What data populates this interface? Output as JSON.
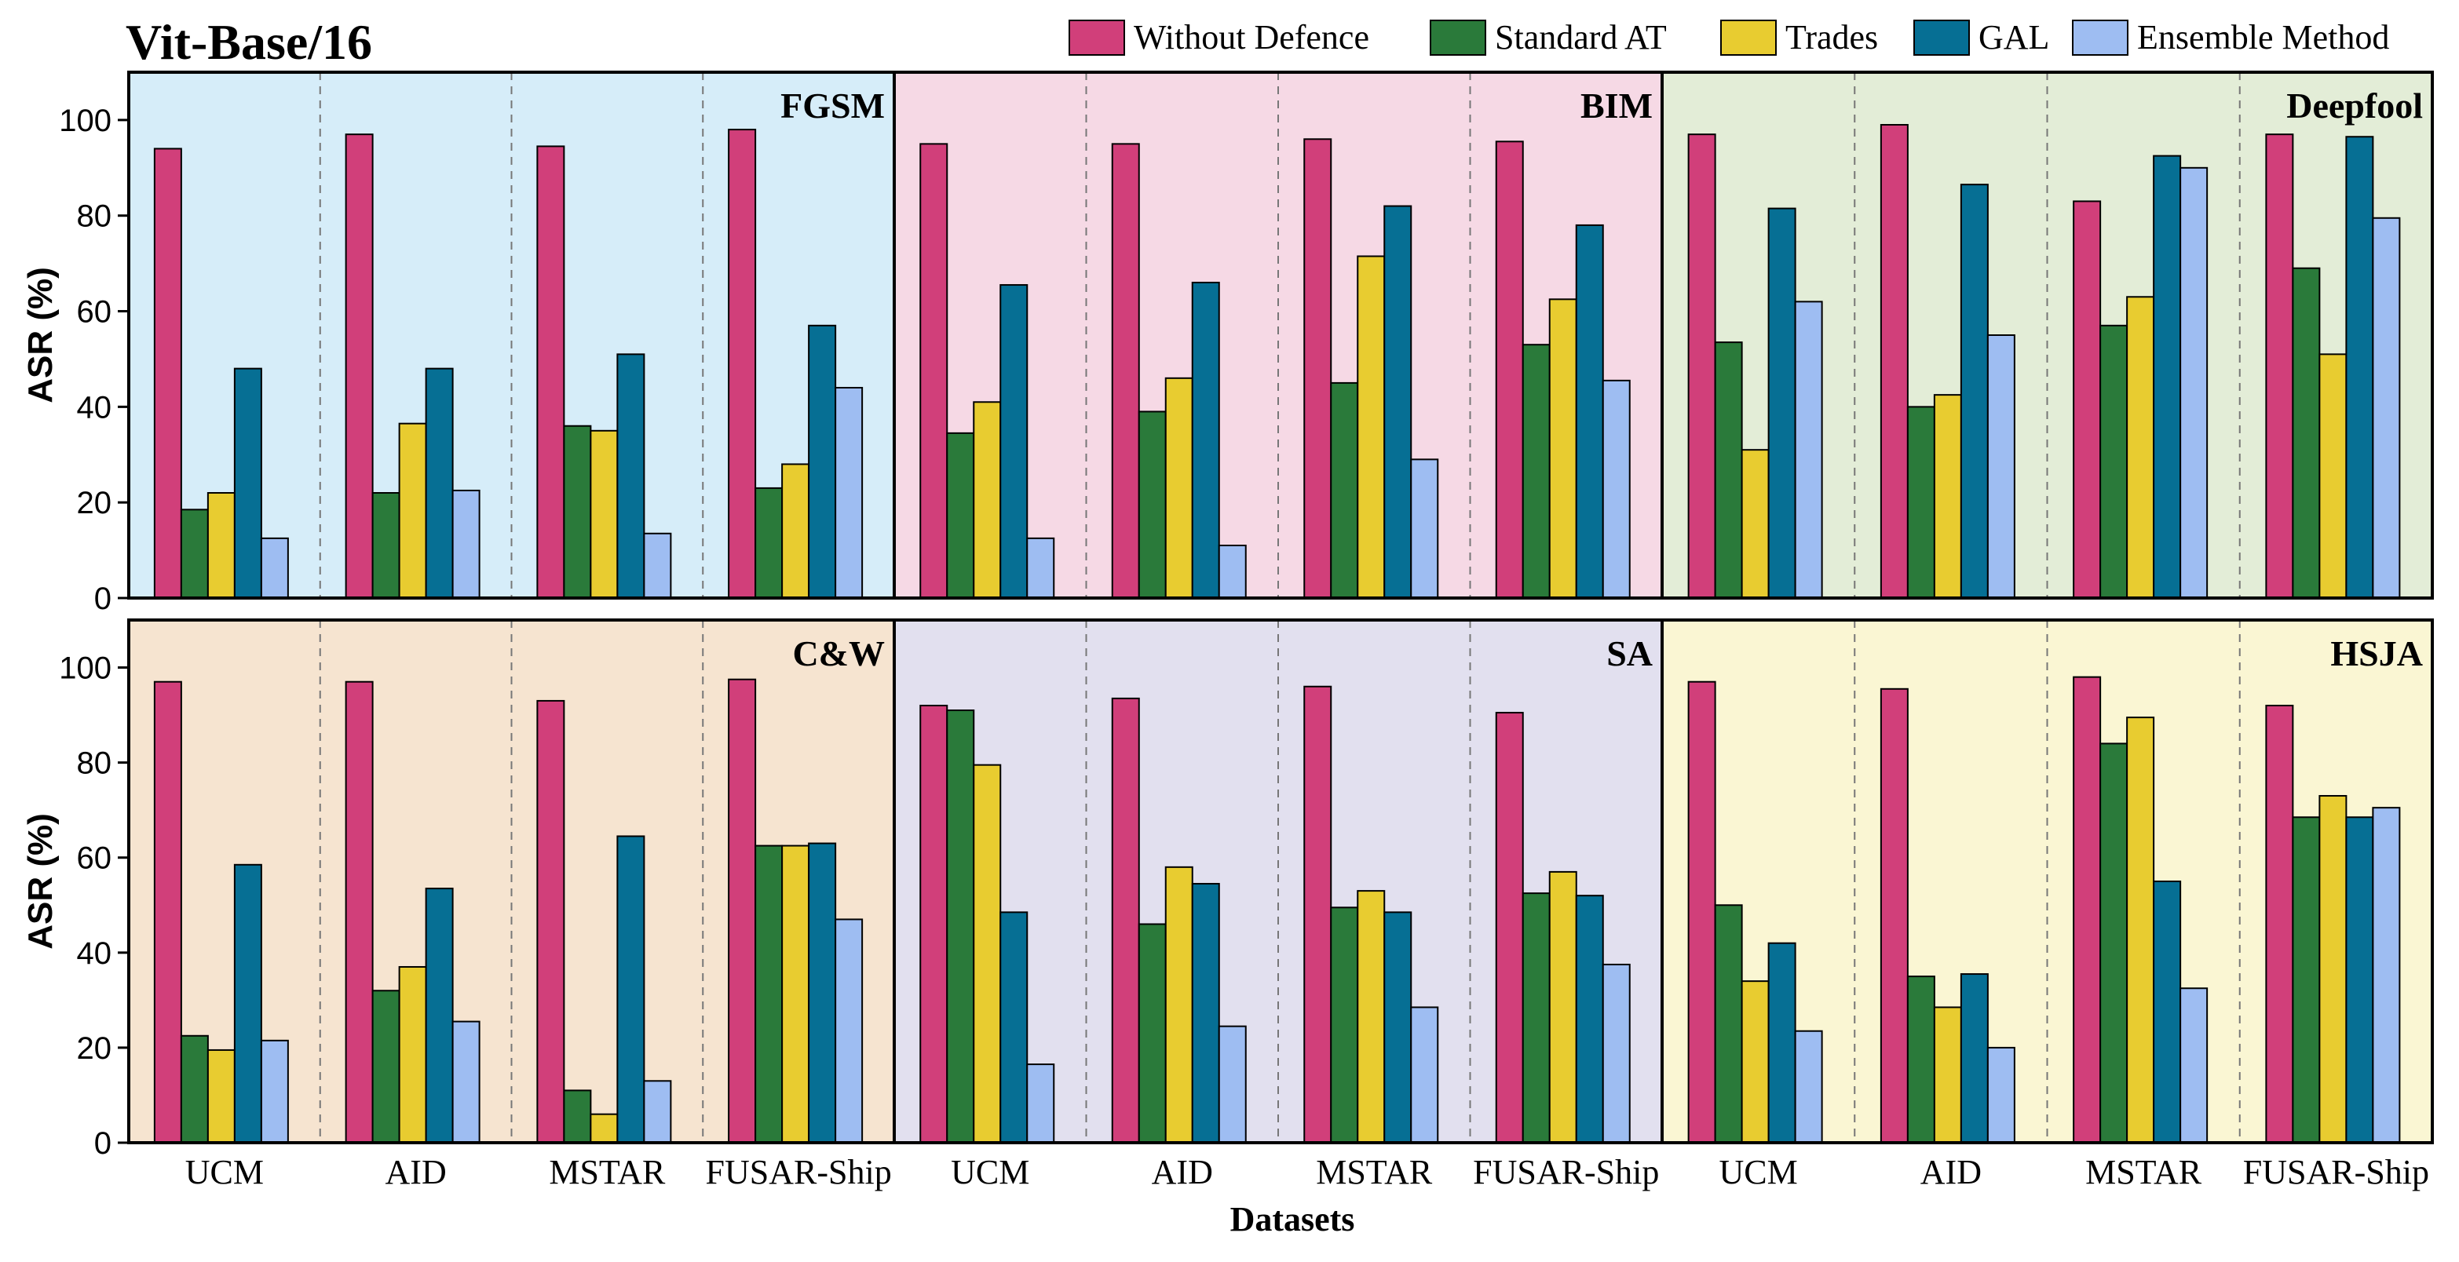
{
  "chart_data": {
    "type": "bar",
    "title": "Vit-Base/16",
    "xlabel": "Datasets",
    "ylabel": "ASR (%)",
    "ylim": [
      0,
      110
    ],
    "yticks": [
      "0",
      "20",
      "40",
      "60",
      "80",
      "100"
    ],
    "grid": false,
    "legend_position": "top-right",
    "categories": [
      "UCM",
      "AID",
      "MSTAR",
      "FUSAR-Ship"
    ],
    "series_names": [
      "Without Defence",
      "Standard AT",
      "Trades",
      "GAL",
      "Ensemble Method"
    ],
    "series_colors": [
      "#d13f7a",
      "#2a7a3a",
      "#e8cc30",
      "#066f94",
      "#9ebdf2"
    ],
    "panels": [
      {
        "attack": "FGSM",
        "background": "#d6edf9",
        "series": [
          {
            "name": "Without Defence",
            "values": [
              94,
              97,
              94.5,
              98
            ]
          },
          {
            "name": "Standard AT",
            "values": [
              18.5,
              22,
              36,
              23
            ]
          },
          {
            "name": "Trades",
            "values": [
              22,
              36.5,
              35,
              28
            ]
          },
          {
            "name": "GAL",
            "values": [
              48,
              48,
              51,
              57
            ]
          },
          {
            "name": "Ensemble Method",
            "values": [
              12.5,
              22.5,
              13.5,
              44
            ]
          }
        ]
      },
      {
        "attack": "BIM",
        "background": "#f6d9e5",
        "series": [
          {
            "name": "Without Defence",
            "values": [
              95,
              95,
              96,
              95.5
            ]
          },
          {
            "name": "Standard AT",
            "values": [
              34.5,
              39,
              45,
              53
            ]
          },
          {
            "name": "Trades",
            "values": [
              41,
              46,
              71.5,
              62.5
            ]
          },
          {
            "name": "GAL",
            "values": [
              65.5,
              66,
              82,
              78
            ]
          },
          {
            "name": "Ensemble Method",
            "values": [
              12.5,
              11,
              29,
              45.5
            ]
          }
        ]
      },
      {
        "attack": "Deepfool",
        "background": "#e3edd7",
        "series": [
          {
            "name": "Without Defence",
            "values": [
              97,
              99,
              83,
              97
            ]
          },
          {
            "name": "Standard AT",
            "values": [
              53.5,
              40,
              57,
              69
            ]
          },
          {
            "name": "Trades",
            "values": [
              31,
              42.5,
              63,
              51
            ]
          },
          {
            "name": "GAL",
            "values": [
              81.5,
              86.5,
              92.5,
              96.5
            ]
          },
          {
            "name": "Ensemble Method",
            "values": [
              62,
              55,
              90,
              79.5
            ]
          }
        ]
      },
      {
        "attack": "C&W",
        "background": "#f6e4d0",
        "series": [
          {
            "name": "Without Defence",
            "values": [
              97,
              97,
              93,
              97.5
            ]
          },
          {
            "name": "Standard AT",
            "values": [
              22.5,
              32,
              11,
              62.5
            ]
          },
          {
            "name": "Trades",
            "values": [
              19.5,
              37,
              6,
              62.5
            ]
          },
          {
            "name": "GAL",
            "values": [
              58.5,
              53.5,
              64.5,
              63
            ]
          },
          {
            "name": "Ensemble Method",
            "values": [
              21.5,
              25.5,
              13,
              47
            ]
          }
        ]
      },
      {
        "attack": "SA",
        "background": "#e2e0ef",
        "series": [
          {
            "name": "Without Defence",
            "values": [
              92,
              93.5,
              96,
              90.5
            ]
          },
          {
            "name": "Standard AT",
            "values": [
              91,
              46,
              49.5,
              52.5
            ]
          },
          {
            "name": "Trades",
            "values": [
              79.5,
              58,
              53,
              57
            ]
          },
          {
            "name": "GAL",
            "values": [
              48.5,
              54.5,
              48.5,
              52
            ]
          },
          {
            "name": "Ensemble Method",
            "values": [
              16.5,
              24.5,
              28.5,
              37.5
            ]
          }
        ]
      },
      {
        "attack": "HSJA",
        "background": "#faf6d3",
        "series": [
          {
            "name": "Without Defence",
            "values": [
              97,
              95.5,
              98,
              92
            ]
          },
          {
            "name": "Standard AT",
            "values": [
              50,
              35,
              84,
              68.5
            ]
          },
          {
            "name": "Trades",
            "values": [
              34,
              28.5,
              89.5,
              73
            ]
          },
          {
            "name": "GAL",
            "values": [
              42,
              35.5,
              55,
              68.5
            ]
          },
          {
            "name": "Ensemble Method",
            "values": [
              23.5,
              20,
              32.5,
              70.5
            ]
          }
        ]
      }
    ]
  }
}
